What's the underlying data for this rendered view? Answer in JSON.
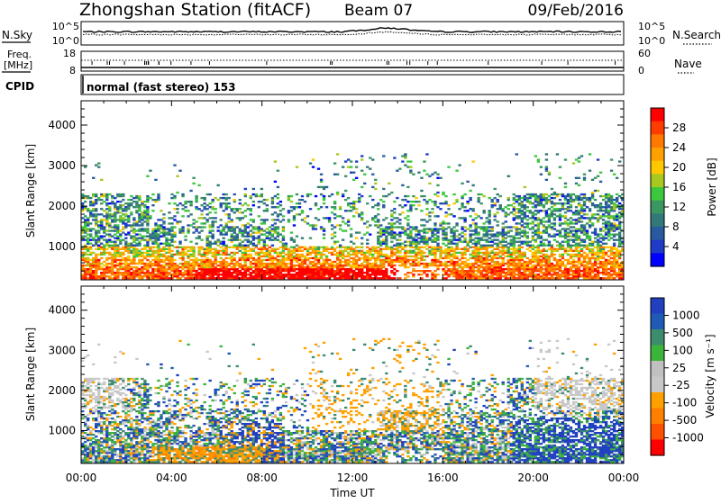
{
  "header": {
    "title": "Zhongshan Station (fitACF)",
    "beam": "Beam 07",
    "date": "09/Feb/2016"
  },
  "top_panels": {
    "nsky_label": "N.Sky",
    "nsearch_label": "N.Search",
    "nsky_ticks": [
      "10^5",
      "10^0"
    ],
    "nsearch_ticks": [
      "10^5",
      "10^0"
    ],
    "freq_label_1": "Freq.",
    "freq_label_2": "[MHz]",
    "freq_ticks": [
      "18",
      "8"
    ],
    "nave_label": "Nave",
    "nave_ticks": [
      "60",
      "0"
    ],
    "cpid_label": "CPID",
    "cpid_text": "normal (fast stereo) 153"
  },
  "power_colorbar": {
    "label": "Power [dB]",
    "ticks": [
      "28",
      "24",
      "20",
      "16",
      "12",
      "8",
      "4"
    ],
    "colors": [
      "#ff0000",
      "#ff3c00",
      "#ff7800",
      "#ffa000",
      "#ffc800",
      "#a8c820",
      "#3cc83c",
      "#3c9660",
      "#327878",
      "#285aa0",
      "#1e3cc8",
      "#0000ff"
    ]
  },
  "velocity_colorbar": {
    "label": "Velocity [m s⁻¹]",
    "ticks": [
      "1000",
      "500",
      "100",
      "25",
      "-25",
      "-100",
      "-500",
      "-1000"
    ],
    "colors": [
      "#2040c0",
      "#205ab4",
      "#3c8c6e",
      "#3cb43c",
      "#c0c0c0",
      "#c8c8c8",
      "#ffa000",
      "#ff8000",
      "#ff5000",
      "#ff0000"
    ]
  },
  "chart_data": [
    {
      "type": "heatmap",
      "name": "power",
      "ylabel": "Slant Range [km]",
      "xlabel": "",
      "xlim": [
        0,
        24
      ],
      "ylim": [
        180,
        4600
      ],
      "yticks": [
        1000,
        2000,
        3000,
        4000
      ],
      "xticks": [
        "00:00",
        "04:00",
        "08:00",
        "12:00",
        "16:00",
        "20:00",
        "00:00"
      ],
      "colorbar_label": "Power [dB]",
      "colorbar_range": [
        0,
        30
      ]
    },
    {
      "type": "heatmap",
      "name": "velocity",
      "ylabel": "Slant Range [km]",
      "xlabel": "Time UT",
      "xlim": [
        0,
        24
      ],
      "ylim": [
        180,
        4600
      ],
      "yticks": [
        1000,
        2000,
        3000,
        4000
      ],
      "xticks": [
        "00:00",
        "04:00",
        "08:00",
        "12:00",
        "16:00",
        "20:00",
        "00:00"
      ],
      "colorbar_label": "Velocity [m s⁻¹]",
      "colorbar_range": [
        -1000,
        1000
      ]
    }
  ]
}
